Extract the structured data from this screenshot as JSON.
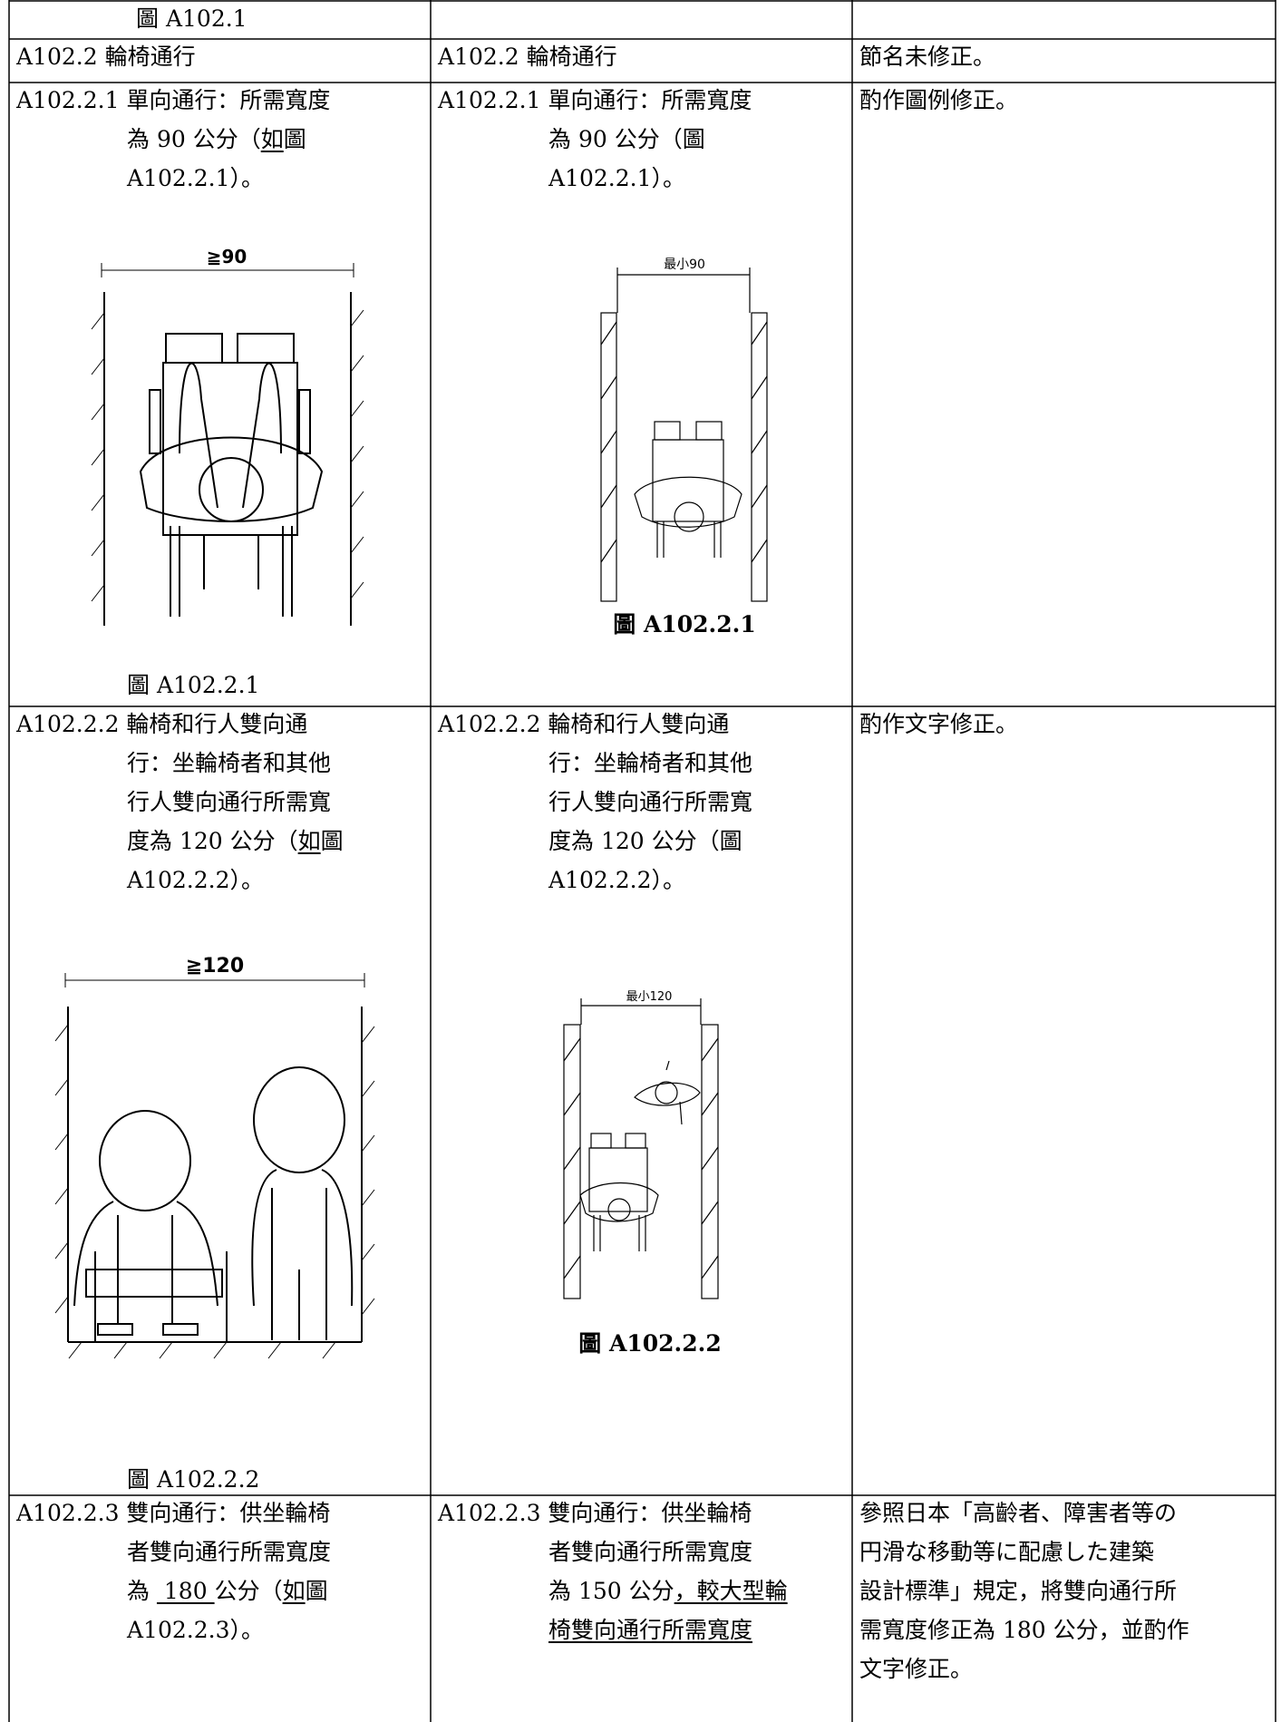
{
  "rows": [
    {
      "cells": [
        {
          "lines": [
            "圖 A102.1"
          ]
        }
      ]
    },
    {
      "cells": [
        {
          "lines": [
            "A102.2 輪椅通行"
          ]
        },
        {
          "lines": [
            "A102.2 輪椅通行"
          ]
        },
        {
          "lines": [
            "節名未修正。"
          ]
        }
      ]
    },
    {
      "cells": [
        {
          "lines": [
            "A102.2.1 單向通行：所需寬度",
            [
              "為 90 公分（",
              {
                "text": "如",
                "underline": true
              },
              "圖"
            ],
            "A102.2.1）。"
          ],
          "figure": {
            "dimension": "≧90",
            "caption": "圖 A102.2.1"
          }
        },
        {
          "lines": [
            "A102.2.1 單向通行：所需寬度",
            "為 90 公分（圖",
            "A102.2.1）。"
          ],
          "figure": {
            "dimension": "最小90",
            "caption": "圖 A102.2.1"
          }
        },
        {
          "lines": [
            "酌作圖例修正。"
          ]
        }
      ]
    },
    {
      "cells": [
        {
          "lines": [
            "A102.2.2 輪椅和行人雙向通",
            "行：坐輪椅者和其他",
            "行人雙向通行所需寬",
            [
              "度為 120 公分（",
              {
                "text": "如",
                "underline": true
              },
              "圖"
            ],
            "A102.2.2）。"
          ],
          "figure": {
            "dimension": "≧120",
            "caption": "圖 A102.2.2"
          }
        },
        {
          "lines": [
            "A102.2.2 輪椅和行人雙向通",
            "行：坐輪椅者和其他",
            "行人雙向通行所需寬",
            "度為 120 公分（圖",
            "A102.2.2）。"
          ],
          "figure": {
            "dimension": "最小120",
            "caption": "圖 A102.2.2"
          }
        },
        {
          "lines": [
            "酌作文字修正。"
          ]
        }
      ]
    },
    {
      "cells": [
        {
          "lines": [
            "A102.2.3 雙向通行：供坐輪椅",
            "者雙向通行所需寬度",
            [
              "為 ",
              {
                "text": " 180 ",
                "underline": true
              },
              "公分（",
              {
                "text": "如",
                "underline": true
              },
              "圖"
            ],
            "A102.2.3）。"
          ]
        },
        {
          "lines": [
            "A102.2.3 雙向通行：供坐輪椅",
            "者雙向通行所需寬度",
            [
              "為 150 公分",
              {
                "text": "，較大型輪",
                "underline": true
              }
            ],
            [
              {
                "text": "椅雙向通行所需寬度",
                "underline": true
              }
            ]
          ]
        },
        {
          "lines": [
            "參照日本「高齡者、障害者等の",
            "円滑な移動等に配慮した建築",
            "設計標準」規定，將雙向通行所",
            "需寬度修正為 180 公分，並酌作",
            "文字修正。"
          ]
        }
      ]
    }
  ]
}
